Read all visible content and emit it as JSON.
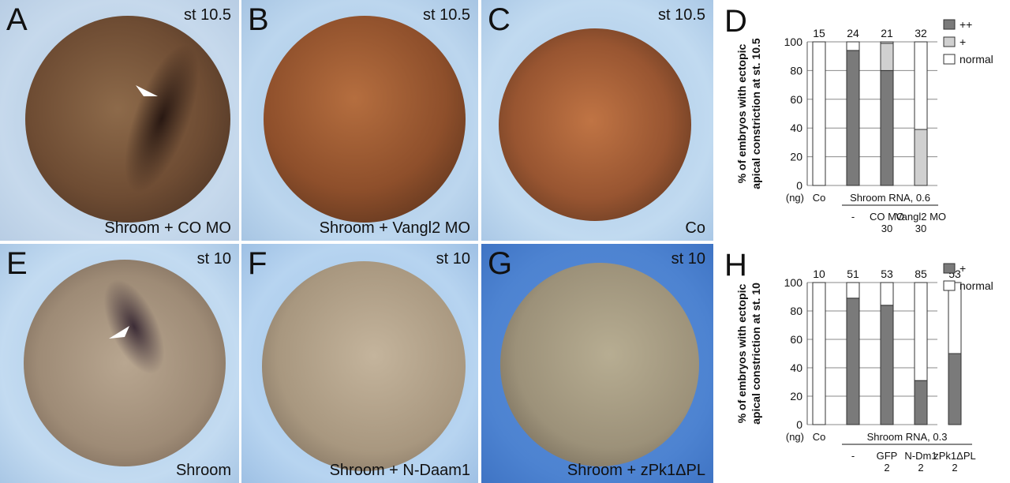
{
  "panels": [
    {
      "letter": "A",
      "stage": "st 10.5",
      "caption": "Shroom + CO MO"
    },
    {
      "letter": "B",
      "stage": "st 10.5",
      "caption": "Shroom + Vangl2 MO"
    },
    {
      "letter": "C",
      "stage": "st 10.5",
      "caption": "Co"
    },
    {
      "letter": "E",
      "stage": "st 10",
      "caption": "Shroom"
    },
    {
      "letter": "F",
      "stage": "st 10",
      "caption": "Shroom + N-Daam1"
    },
    {
      "letter": "G",
      "stage": "st 10",
      "caption": "Shroom + zPk1ΔPL"
    }
  ],
  "chart_data": [
    {
      "type": "bar",
      "panel_letter": "D",
      "ylabel_line1": "% of embryos with ectopic",
      "ylabel_line2": "apical constriction at st. 10.5",
      "ylim": [
        0,
        100
      ],
      "yticks": [
        "0",
        "20",
        "40",
        "60",
        "80",
        "100"
      ],
      "categories": [
        "Co",
        "-",
        "CO MO",
        "Vangl2 MO"
      ],
      "category_sub": [
        "",
        "",
        "30",
        "30"
      ],
      "n_labels": [
        "15",
        "24",
        "21",
        "32"
      ],
      "unit_label": "(ng)",
      "group_label": "Shroom RNA,  0.6",
      "legend": [
        "++",
        "+",
        "normal"
      ],
      "colors": {
        "++": "#7a7a7a",
        "+": "#d0d0d0",
        "normal": "#ffffff"
      },
      "series": [
        {
          "name": "++",
          "values": [
            0,
            94,
            80,
            0
          ]
        },
        {
          "name": "+",
          "values": [
            0,
            0,
            19,
            39
          ]
        },
        {
          "name": "normal",
          "values": [
            100,
            6,
            1,
            61
          ]
        }
      ]
    },
    {
      "type": "bar",
      "panel_letter": "H",
      "ylabel_line1": "% of embryos with ectopic",
      "ylabel_line2": "apical constriction at st. 10",
      "ylim": [
        0,
        100
      ],
      "yticks": [
        "0",
        "20",
        "40",
        "60",
        "80",
        "100"
      ],
      "categories": [
        "Co",
        "-",
        "GFP",
        "N-Dm1",
        "zPk1ΔPL"
      ],
      "category_sub": [
        "",
        "",
        "2",
        "2",
        "2"
      ],
      "n_labels": [
        "10",
        "51",
        "53",
        "85",
        "53"
      ],
      "unit_label": "(ng)",
      "group_label": "Shroom RNA,  0.3",
      "legend": [
        "+",
        "normal"
      ],
      "colors": {
        "+": "#7a7a7a",
        "normal": "#ffffff"
      },
      "series": [
        {
          "name": "+",
          "values": [
            0,
            89,
            84,
            31,
            50
          ]
        },
        {
          "name": "normal",
          "values": [
            100,
            11,
            16,
            69,
            50
          ]
        }
      ]
    }
  ]
}
